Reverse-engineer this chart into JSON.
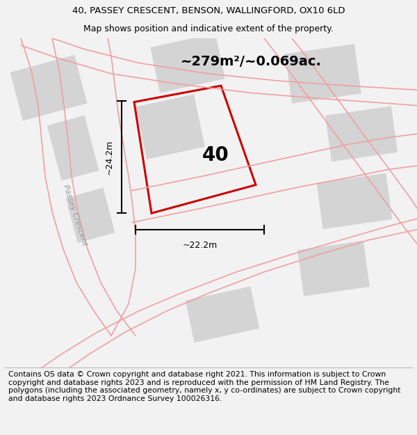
{
  "title_line1": "40, PASSEY CRESCENT, BENSON, WALLINGFORD, OX10 6LD",
  "title_line2": "Map shows position and indicative extent of the property.",
  "area_text": "~279m²/~0.069ac.",
  "plot_number": "40",
  "dim_vertical": "~24.2m",
  "dim_horizontal": "~22.2m",
  "road_label": "Passey Crescent",
  "footer_text": "Contains OS data © Crown copyright and database right 2021. This information is subject to Crown copyright and database rights 2023 and is reproduced with the permission of HM Land Registry. The polygons (including the associated geometry, namely x, y co-ordinates) are subject to Crown copyright and database rights 2023 Ordnance Survey 100026316.",
  "bg_color": "#f2f2f2",
  "map_bg": "#ffffff",
  "plot_color": "#cc0000",
  "road_outline_color": "#f0a0a0",
  "building_fill": "#d4d4d4",
  "building_edge": "#d4d4d4",
  "title_fontsize": 9.5,
  "subtitle_fontsize": 9,
  "footer_fontsize": 7.8,
  "area_fontsize": 14,
  "number_fontsize": 20,
  "dim_fontsize": 9
}
